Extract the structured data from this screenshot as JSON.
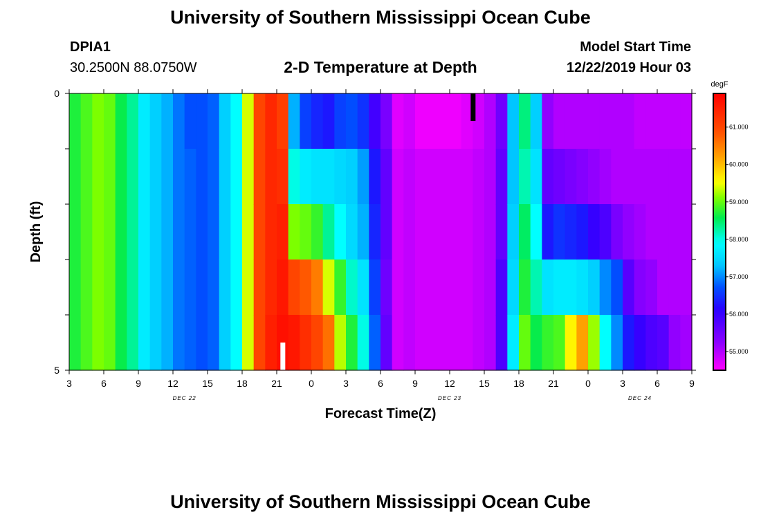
{
  "page": {
    "title_top": "University of Southern Mississippi Ocean Cube",
    "title_bottom": "University of Southern Mississippi Ocean Cube",
    "station_id": "DPIA1",
    "coords": "30.2500N 88.0750W",
    "plot_title": "2-D Temperature at Depth",
    "model_start_label": "Model Start Time",
    "model_start_value": "12/22/2019 Hour 03"
  },
  "chart_data": {
    "type": "heatmap",
    "title": "2-D Temperature at Depth",
    "xlabel": "Forecast Time(Z)",
    "ylabel": "Depth (ft)",
    "xlim": [
      0,
      54
    ],
    "ylim": [
      5,
      0
    ],
    "x_tick_labels": [
      "3",
      "6",
      "9",
      "12",
      "15",
      "18",
      "21",
      "0",
      "3",
      "6",
      "9",
      "12",
      "15",
      "18",
      "21",
      "0",
      "3",
      "6",
      "9"
    ],
    "y_tick_labels": [
      {
        "value": 0,
        "label": "0"
      },
      {
        "value": 5,
        "label": "5"
      }
    ],
    "y_minor_ticks": [
      1,
      2,
      3,
      4
    ],
    "day_labels": [
      {
        "label": "DEC 22",
        "hour": 10
      },
      {
        "label": "DEC 23",
        "hour": 33
      },
      {
        "label": "DEC 24",
        "hour": 49.5
      }
    ],
    "units": "degF",
    "colorbar": {
      "unit_label": "degF",
      "range": [
        54.5,
        61.9
      ],
      "tick_labels": [
        "55.000",
        "56.000",
        "57.000",
        "58.000",
        "59.000",
        "60.000",
        "61.000"
      ],
      "tick_values": [
        55,
        56,
        57,
        58,
        59,
        60,
        61
      ]
    },
    "depth_layers": [
      0,
      1,
      2,
      3,
      4
    ],
    "markers": [
      {
        "color": "#000000",
        "hour": 35,
        "depth_top": 0,
        "depth_bottom": 0.5
      },
      {
        "color": "#ffffff",
        "hour": 18.5,
        "depth_top": 4.5,
        "depth_bottom": 5
      }
    ],
    "columns": [
      {
        "x": 0,
        "values": [
          58.7,
          58.7,
          58.7,
          58.7,
          58.7
        ]
      },
      {
        "x": 1,
        "values": [
          58.9,
          58.9,
          58.9,
          58.9,
          58.9
        ]
      },
      {
        "x": 2,
        "values": [
          59.1,
          59.1,
          59.1,
          59.1,
          59.1
        ]
      },
      {
        "x": 3,
        "values": [
          59.0,
          59.0,
          59.0,
          59.0,
          59.0
        ]
      },
      {
        "x": 4,
        "values": [
          58.6,
          58.6,
          58.6,
          58.6,
          58.6
        ]
      },
      {
        "x": 5,
        "values": [
          58.3,
          58.3,
          58.3,
          58.3,
          58.3
        ]
      },
      {
        "x": 6,
        "values": [
          57.7,
          57.7,
          57.7,
          57.7,
          57.7
        ]
      },
      {
        "x": 7,
        "values": [
          57.4,
          57.4,
          57.4,
          57.4,
          57.4
        ]
      },
      {
        "x": 8,
        "values": [
          57.2,
          57.2,
          57.2,
          57.2,
          57.2
        ]
      },
      {
        "x": 9,
        "values": [
          56.9,
          56.9,
          56.9,
          56.9,
          56.9
        ]
      },
      {
        "x": 10,
        "values": [
          56.7,
          56.8,
          56.8,
          56.8,
          56.8
        ]
      },
      {
        "x": 11,
        "values": [
          56.7,
          56.7,
          56.7,
          56.7,
          56.7
        ]
      },
      {
        "x": 12,
        "values": [
          56.8,
          56.8,
          56.8,
          56.8,
          56.8
        ]
      },
      {
        "x": 13,
        "values": [
          57.4,
          57.4,
          57.4,
          57.4,
          57.4
        ]
      },
      {
        "x": 14,
        "values": [
          57.9,
          57.9,
          57.9,
          57.9,
          57.9
        ]
      },
      {
        "x": 15,
        "values": [
          59.4,
          59.4,
          59.4,
          59.4,
          59.4
        ]
      },
      {
        "x": 16,
        "values": [
          61.0,
          61.0,
          61.0,
          61.0,
          61.0
        ]
      },
      {
        "x": 17,
        "values": [
          61.4,
          61.4,
          61.4,
          61.4,
          61.5
        ]
      },
      {
        "x": 18,
        "values": [
          61.1,
          61.3,
          61.5,
          61.6,
          61.7
        ]
      },
      {
        "x": 19,
        "values": [
          57.2,
          58.0,
          59.1,
          61.0,
          61.6
        ]
      },
      {
        "x": 20,
        "values": [
          56.6,
          57.7,
          59.0,
          60.8,
          61.3
        ]
      },
      {
        "x": 21,
        "values": [
          56.4,
          57.6,
          58.8,
          60.5,
          61.0
        ]
      },
      {
        "x": 22,
        "values": [
          56.3,
          57.6,
          58.3,
          59.4,
          60.6
        ]
      },
      {
        "x": 23,
        "values": [
          56.6,
          57.5,
          57.9,
          58.8,
          59.3
        ]
      },
      {
        "x": 24,
        "values": [
          56.7,
          57.4,
          57.5,
          58.1,
          58.7
        ]
      },
      {
        "x": 25,
        "values": [
          56.5,
          57.1,
          57.2,
          57.6,
          58.0
        ]
      },
      {
        "x": 26,
        "values": [
          55.9,
          56.3,
          56.4,
          56.6,
          56.8
        ]
      },
      {
        "x": 27,
        "values": [
          55.4,
          55.6,
          55.6,
          55.5,
          55.6
        ]
      },
      {
        "x": 28,
        "values": [
          54.7,
          54.8,
          54.8,
          54.8,
          54.8
        ]
      },
      {
        "x": 29,
        "values": [
          54.8,
          54.9,
          54.9,
          54.9,
          54.9
        ]
      },
      {
        "x": 30,
        "values": [
          54.6,
          54.8,
          54.8,
          54.8,
          54.8
        ]
      },
      {
        "x": 31,
        "values": [
          54.6,
          54.8,
          54.8,
          54.8,
          54.8
        ]
      },
      {
        "x": 32,
        "values": [
          54.6,
          54.8,
          54.8,
          54.8,
          54.8
        ]
      },
      {
        "x": 33,
        "values": [
          54.6,
          54.8,
          54.8,
          54.8,
          54.8
        ]
      },
      {
        "x": 34,
        "values": [
          54.7,
          54.8,
          54.8,
          54.8,
          54.8
        ]
      },
      {
        "x": 35,
        "values": [
          54.8,
          54.9,
          54.9,
          54.9,
          54.9
        ]
      },
      {
        "x": 36,
        "values": [
          55.0,
          55.0,
          55.0,
          55.0,
          55.0
        ]
      },
      {
        "x": 37,
        "values": [
          55.5,
          55.6,
          55.6,
          55.8,
          55.8
        ]
      },
      {
        "x": 38,
        "values": [
          57.3,
          57.3,
          57.4,
          57.5,
          57.7
        ]
      },
      {
        "x": 39,
        "values": [
          58.4,
          58.2,
          58.5,
          58.7,
          59.0
        ]
      },
      {
        "x": 40,
        "values": [
          57.4,
          57.6,
          57.9,
          58.2,
          58.6
        ]
      },
      {
        "x": 41,
        "values": [
          55.2,
          55.6,
          56.3,
          57.6,
          58.8
        ]
      },
      {
        "x": 42,
        "values": [
          55.0,
          55.5,
          56.5,
          57.7,
          58.9
        ]
      },
      {
        "x": 43,
        "values": [
          55.0,
          55.4,
          56.4,
          57.7,
          59.6
        ]
      },
      {
        "x": 44,
        "values": [
          55.0,
          55.3,
          56.3,
          57.6,
          60.2
        ]
      },
      {
        "x": 45,
        "values": [
          55.0,
          55.2,
          56.0,
          57.4,
          59.2
        ]
      },
      {
        "x": 46,
        "values": [
          55.0,
          55.1,
          55.8,
          57.0,
          57.9
        ]
      },
      {
        "x": 47,
        "values": [
          55.0,
          55.0,
          55.4,
          56.7,
          57.0
        ]
      },
      {
        "x": 48,
        "values": [
          55.0,
          55.0,
          55.2,
          55.7,
          56.3
        ]
      },
      {
        "x": 49,
        "values": [
          54.9,
          55.0,
          55.1,
          55.3,
          56.0
        ]
      },
      {
        "x": 50,
        "values": [
          54.9,
          55.0,
          55.0,
          55.2,
          55.8
        ]
      },
      {
        "x": 51,
        "values": [
          54.9,
          55.0,
          55.0,
          55.0,
          55.7
        ]
      },
      {
        "x": 52,
        "values": [
          54.9,
          55.0,
          55.0,
          55.0,
          55.2
        ]
      },
      {
        "x": 53,
        "values": [
          54.9,
          55.0,
          55.0,
          55.0,
          55.1
        ]
      }
    ]
  }
}
